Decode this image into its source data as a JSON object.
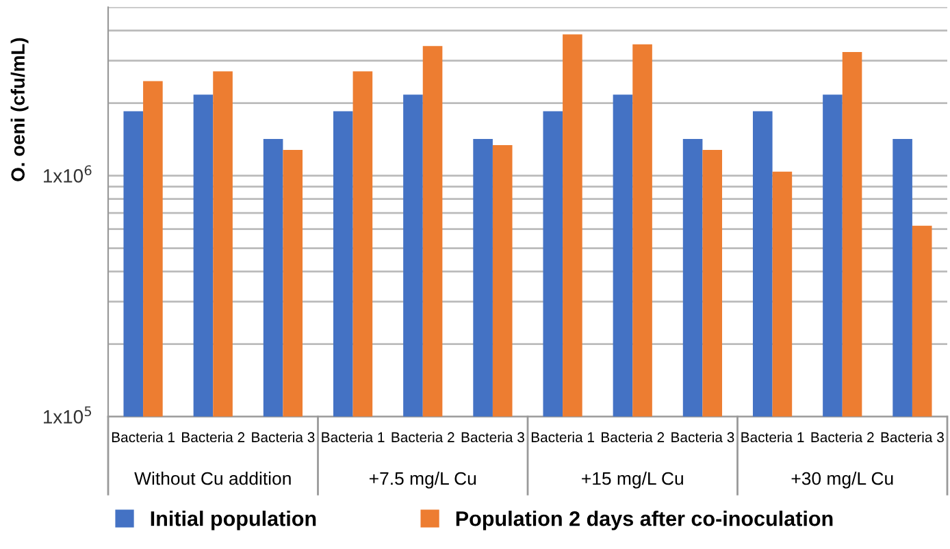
{
  "chart_data": {
    "type": "bar",
    "ylabel": "O. oeni (cfu/mL)",
    "categories": [
      "Bacteria 1",
      "Bacteria 2",
      "Bacteria 3",
      "Bacteria 1",
      "Bacteria 2",
      "Bacteria 3",
      "Bacteria 1",
      "Bacteria 2",
      "Bacteria 3",
      "Bacteria 1",
      "Bacteria 2",
      "Bacteria 3"
    ],
    "series": [
      {
        "name": "Initial population",
        "color": "#4472c4",
        "values": [
          1850000,
          2170000,
          1420000,
          1850000,
          2170000,
          1420000,
          1850000,
          2170000,
          1420000,
          1850000,
          2170000,
          1420000
        ]
      },
      {
        "name": "Population 2 days after co-inoculation",
        "color": "#ed7d31",
        "values": [
          2470000,
          2710000,
          1280000,
          2710000,
          3450000,
          1340000,
          3860000,
          3510000,
          1280000,
          1040000,
          3260000,
          620000
        ]
      }
    ],
    "annotations": [
      "Without Cu addition",
      "+7.5 mg/L Cu",
      "+15 mg/L Cu",
      "+30 mg/L Cu"
    ],
    "log": "y",
    "ylim": [
      100000,
      5000000
    ],
    "yticks": [
      {
        "value": 100000,
        "label": "1x10$^{5}$"
      },
      {
        "value": 200000,
        "label": null
      },
      {
        "value": 300000,
        "label": null
      },
      {
        "value": 400000,
        "label": null
      },
      {
        "value": 500000,
        "label": null
      },
      {
        "value": 600000,
        "label": null
      },
      {
        "value": 700000,
        "label": null
      },
      {
        "value": 800000,
        "label": null
      },
      {
        "value": 900000,
        "label": null
      },
      {
        "value": 1000000,
        "label": "1x10$^{6}$"
      },
      {
        "value": 2000000,
        "label": null
      },
      {
        "value": 3000000,
        "label": null
      },
      {
        "value": 4000000,
        "label": null
      },
      {
        "value": 5000000,
        "label": null
      }
    ],
    "grid": "y",
    "legend": "bottom"
  }
}
